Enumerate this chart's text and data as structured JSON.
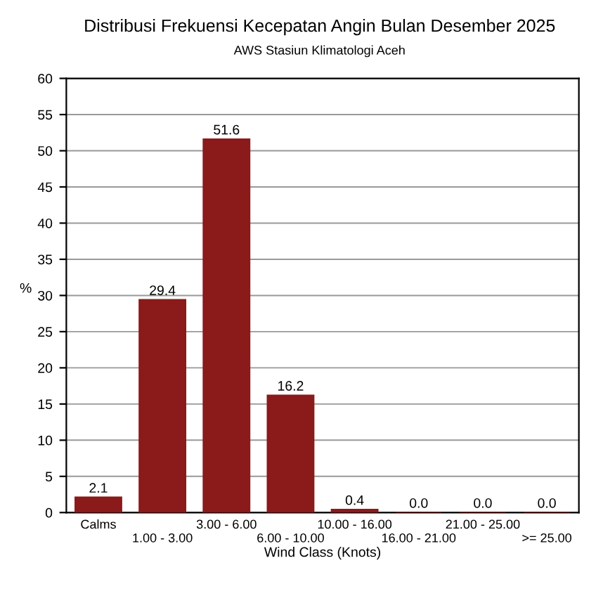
{
  "chart_data": {
    "type": "bar",
    "title": "Distribusi Frekuensi Kecepatan Angin Bulan Desember 2025",
    "subtitle": "AWS Stasiun Klimatologi Aceh",
    "xlabel": "Wind Class (Knots)",
    "ylabel": "%",
    "categories": [
      "Calms",
      "1.00 - 3.00",
      "3.00 - 6.00",
      "6.00 - 10.00",
      "10.00 - 16.00",
      "16.00 - 21.00",
      "21.00 - 25.00",
      ">= 25.00"
    ],
    "values": [
      2.1,
      29.4,
      51.6,
      16.2,
      0.4,
      0.0,
      0.0,
      0.0
    ],
    "value_labels": [
      "2.1",
      "29.4",
      "51.6",
      "16.2",
      "0.4",
      "0.0",
      "0.0",
      "0.0"
    ],
    "color": "#8b1a1a",
    "ylim": [
      0,
      60
    ],
    "yticks": [
      0,
      5,
      10,
      15,
      20,
      25,
      30,
      35,
      40,
      45,
      50,
      55,
      60
    ],
    "grid": "y"
  }
}
